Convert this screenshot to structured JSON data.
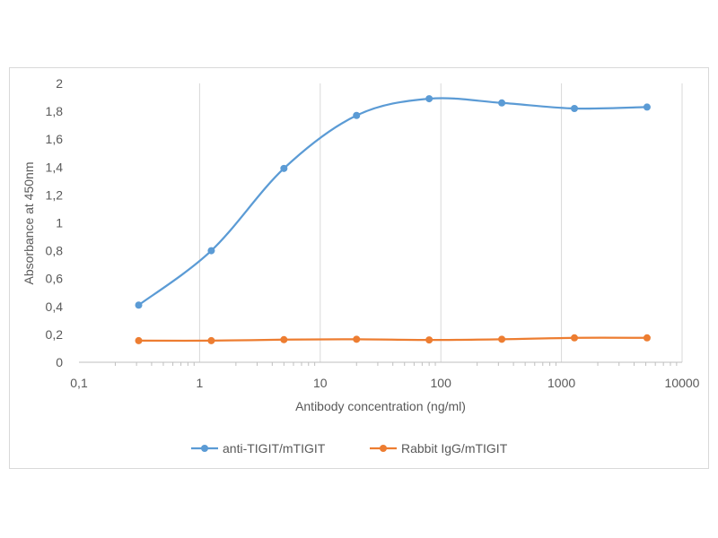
{
  "chart_data": {
    "type": "line",
    "xscale": "log",
    "xlim": [
      0.1,
      10000
    ],
    "ylim": [
      0,
      2
    ],
    "xlabel": "Antibody concentration (ng/ml)",
    "ylabel": "Absorbance at 450nm",
    "x_tick_labels": [
      "0,1",
      "1",
      "10",
      "100",
      "1000",
      "10000"
    ],
    "y_tick_labels": [
      "0",
      "0,2",
      "0,4",
      "0,6",
      "0,8",
      "1",
      "1,2",
      "1,4",
      "1,6",
      "1,8",
      "2"
    ],
    "grid": "vertical",
    "legend_position": "bottom",
    "x": [
      0.3125,
      1.25,
      5,
      20,
      80,
      320,
      1280,
      5120
    ],
    "series": [
      {
        "name": "anti-TIGIT/mTIGIT",
        "color": "#5b9bd5",
        "values": [
          0.41,
          0.8,
          1.39,
          1.77,
          1.89,
          1.86,
          1.82,
          1.83
        ]
      },
      {
        "name": "Rabbit IgG/mTIGIT",
        "color": "#ed7d31",
        "values": [
          0.155,
          0.155,
          0.162,
          0.165,
          0.16,
          0.165,
          0.175,
          0.175
        ]
      }
    ]
  }
}
